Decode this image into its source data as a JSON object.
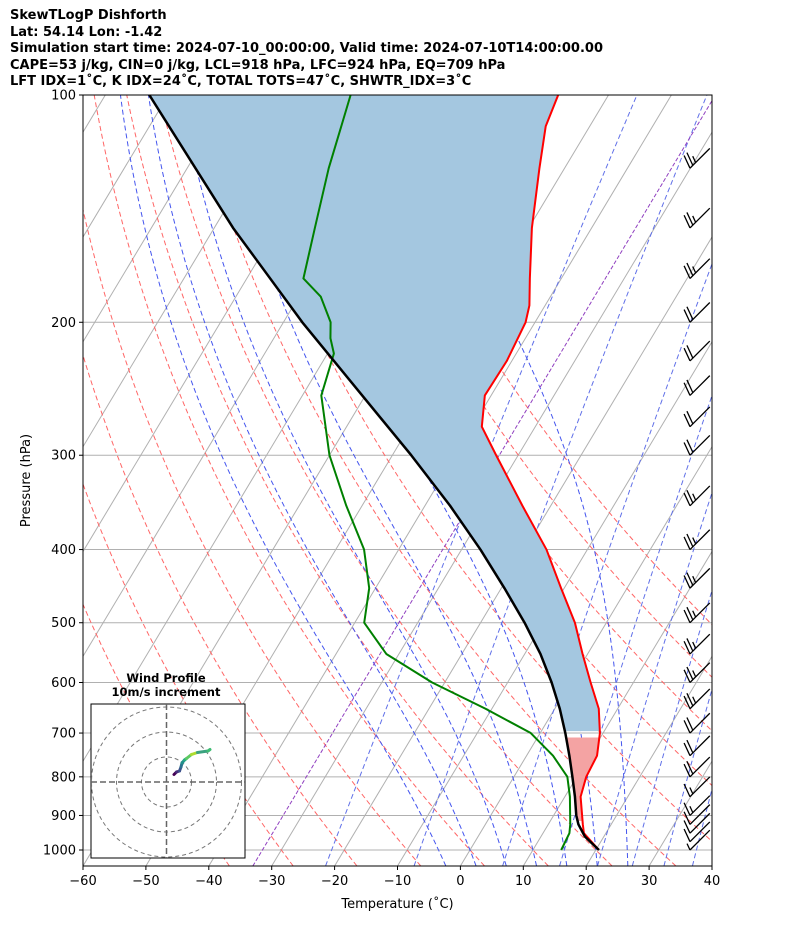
{
  "header": {
    "line1": "SkewTLogP Dishforth",
    "line2": "Lat: 54.14   Lon: -1.42",
    "line3": "Simulation start time: 2024-07-10_00:00:00, Valid time: 2024-07-10T14:00:00.00",
    "line4": "CAPE=53 j/kg, CIN=0 j/kg, LCL=918 hPa, LFC=924 hPa, EQ=709 hPa",
    "line5": "LFT IDX=1˚C, K IDX=24˚C, TOTAL TOTS=47˚C, SHWTR_IDX=3˚C"
  },
  "colors": {
    "temperature": "#ff0000",
    "dewpoint": "#008000",
    "parcel": "#000000",
    "cape_fill": "#a4c7e0",
    "cin_fill": "#f4a3a3",
    "dry_adiabat": "#ff6666",
    "moist_adiabat": "#4455ee",
    "mixing_ratio": "#6070e8",
    "isotherm": "#b0b0b0",
    "isobar": "#b0b0b0",
    "zero_isotherm": "#9040c0"
  },
  "chart_data": {
    "type": "skew-t log-p",
    "xlabel": "Temperature (˚C)",
    "ylabel": "Pressure (hPa)",
    "xlim": [
      -60,
      40
    ],
    "ylim": [
      1050,
      100
    ],
    "xticks": [
      -60,
      -50,
      -40,
      -30,
      -20,
      -10,
      0,
      10,
      20,
      30,
      40
    ],
    "xtick_labels": [
      "−60",
      "−50",
      "−40",
      "−30",
      "−20",
      "−10",
      "0",
      "10",
      "20",
      "30",
      "40"
    ],
    "yticks": [
      1000,
      900,
      800,
      700,
      600,
      500,
      400,
      300,
      200,
      100
    ],
    "temperature": [
      {
        "p": 1000,
        "t": 20.5
      },
      {
        "p": 950,
        "t": 16.5
      },
      {
        "p": 925,
        "t": 15.5
      },
      {
        "p": 850,
        "t": 12.5
      },
      {
        "p": 800,
        "t": 11.5
      },
      {
        "p": 750,
        "t": 11.2
      },
      {
        "p": 700,
        "t": 9.5
      },
      {
        "p": 650,
        "t": 7.0
      },
      {
        "p": 600,
        "t": 3.2
      },
      {
        "p": 550,
        "t": -0.8
      },
      {
        "p": 500,
        "t": -5.0
      },
      {
        "p": 450,
        "t": -10.5
      },
      {
        "p": 400,
        "t": -16.5
      },
      {
        "p": 350,
        "t": -24.5
      },
      {
        "p": 300,
        "t": -33.5
      },
      {
        "p": 275,
        "t": -38.5
      },
      {
        "p": 250,
        "t": -41.0
      },
      {
        "p": 225,
        "t": -40.8
      },
      {
        "p": 200,
        "t": -41.5
      },
      {
        "p": 190,
        "t": -42.5
      },
      {
        "p": 175,
        "t": -45.0
      },
      {
        "p": 150,
        "t": -49.5
      },
      {
        "p": 125,
        "t": -54.0
      },
      {
        "p": 110,
        "t": -57.0
      },
      {
        "p": 100,
        "t": -58.0
      }
    ],
    "dewpoint": [
      {
        "p": 1000,
        "t": 14.5
      },
      {
        "p": 950,
        "t": 14.2
      },
      {
        "p": 925,
        "t": 13.5
      },
      {
        "p": 850,
        "t": 10.8
      },
      {
        "p": 800,
        "t": 8.5
      },
      {
        "p": 750,
        "t": 4.2
      },
      {
        "p": 700,
        "t": -1.5
      },
      {
        "p": 650,
        "t": -11.0
      },
      {
        "p": 600,
        "t": -22.0
      },
      {
        "p": 550,
        "t": -32.0
      },
      {
        "p": 500,
        "t": -38.5
      },
      {
        "p": 450,
        "t": -41.0
      },
      {
        "p": 400,
        "t": -45.5
      },
      {
        "p": 350,
        "t": -52.5
      },
      {
        "p": 300,
        "t": -60.0
      },
      {
        "p": 250,
        "t": -67.0
      },
      {
        "p": 220,
        "t": -69.0
      },
      {
        "p": 210,
        "t": -71.0
      },
      {
        "p": 200,
        "t": -72.5
      },
      {
        "p": 185,
        "t": -76.5
      },
      {
        "p": 175,
        "t": -81.0
      },
      {
        "p": 150,
        "t": -84.0
      },
      {
        "p": 125,
        "t": -87.5
      },
      {
        "p": 110,
        "t": -89.5
      },
      {
        "p": 100,
        "t": -91.0
      }
    ],
    "parcel": [
      {
        "p": 1000,
        "t": 20.5
      },
      {
        "p": 960,
        "t": 17.0
      },
      {
        "p": 925,
        "t": 14.8
      },
      {
        "p": 900,
        "t": 13.6
      },
      {
        "p": 850,
        "t": 11.6
      },
      {
        "p": 800,
        "t": 9.3
      },
      {
        "p": 750,
        "t": 6.8
      },
      {
        "p": 700,
        "t": 4.0
      },
      {
        "p": 650,
        "t": 0.8
      },
      {
        "p": 600,
        "t": -3.0
      },
      {
        "p": 550,
        "t": -7.5
      },
      {
        "p": 500,
        "t": -13.0
      },
      {
        "p": 450,
        "t": -19.5
      },
      {
        "p": 400,
        "t": -27.0
      },
      {
        "p": 350,
        "t": -36.0
      },
      {
        "p": 300,
        "t": -47.0
      },
      {
        "p": 250,
        "t": -60.5
      },
      {
        "p": 200,
        "t": -77.0
      },
      {
        "p": 150,
        "t": -97.0
      },
      {
        "p": 100,
        "t": -123.0
      }
    ],
    "dry_adiabats_theta_c": [
      -40,
      -30,
      -20,
      -10,
      0,
      10,
      20,
      30,
      40,
      50,
      60,
      70,
      80
    ],
    "moist_adiabats_thetaw_c": [
      -5,
      0,
      5,
      10,
      15,
      20,
      25
    ],
    "mixing_ratio_temps_at_1000": [
      -22,
      -8,
      6,
      15,
      21,
      26.5,
      31.5,
      36
    ],
    "zero_isotherm_c": 0,
    "barbs": [
      {
        "p": 1000,
        "speed_kt": 5
      },
      {
        "p": 975,
        "speed_kt": 10
      },
      {
        "p": 950,
        "speed_kt": 10
      },
      {
        "p": 925,
        "speed_kt": 10
      },
      {
        "p": 900,
        "speed_kt": 15
      },
      {
        "p": 850,
        "speed_kt": 15
      },
      {
        "p": 800,
        "speed_kt": 20
      },
      {
        "p": 750,
        "speed_kt": 20
      },
      {
        "p": 700,
        "speed_kt": 20
      },
      {
        "p": 650,
        "speed_kt": 25
      },
      {
        "p": 600,
        "speed_kt": 25
      },
      {
        "p": 550,
        "speed_kt": 25
      },
      {
        "p": 500,
        "speed_kt": 25
      },
      {
        "p": 450,
        "speed_kt": 25
      },
      {
        "p": 400,
        "speed_kt": 25
      },
      {
        "p": 350,
        "speed_kt": 25
      },
      {
        "p": 300,
        "speed_kt": 20
      },
      {
        "p": 275,
        "speed_kt": 20
      },
      {
        "p": 250,
        "speed_kt": 20
      },
      {
        "p": 225,
        "speed_kt": 20
      },
      {
        "p": 200,
        "speed_kt": 20
      },
      {
        "p": 175,
        "speed_kt": 25
      },
      {
        "p": 150,
        "speed_kt": 25
      },
      {
        "p": 125,
        "speed_kt": 25
      }
    ]
  },
  "wind_profile": {
    "title": "Wind Profile",
    "subtitle": "10m/s increment",
    "rings_ms": [
      5,
      10,
      15
    ],
    "hodograph": [
      {
        "u": 1.5,
        "v": 1.5,
        "color": "#440154"
      },
      {
        "u": 2.0,
        "v": 2.0,
        "color": "#472d7b"
      },
      {
        "u": 2.6,
        "v": 2.2,
        "color": "#3b528b"
      },
      {
        "u": 2.9,
        "v": 3.0,
        "color": "#2c728e"
      },
      {
        "u": 3.1,
        "v": 3.8,
        "color": "#21918c"
      },
      {
        "u": 3.6,
        "v": 4.4,
        "color": "#28ae80"
      },
      {
        "u": 4.0,
        "v": 4.7,
        "color": "#5ec962"
      },
      {
        "u": 5.0,
        "v": 5.5,
        "color": "#addc30"
      },
      {
        "u": 6.2,
        "v": 5.9,
        "color": "#3ba27f"
      },
      {
        "u": 8.3,
        "v": 6.2,
        "color": "#3fbc73"
      },
      {
        "u": 8.7,
        "v": 6.5,
        "color": "#46c06f"
      }
    ]
  }
}
